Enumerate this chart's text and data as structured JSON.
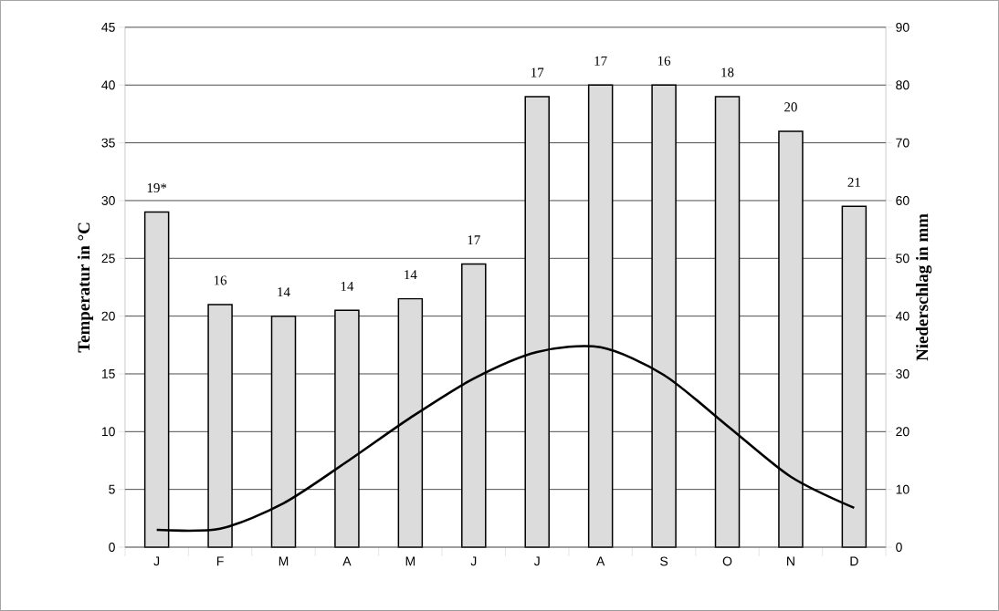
{
  "chart_data": {
    "type": "bar",
    "categories": [
      "J",
      "F",
      "M",
      "A",
      "M",
      "J",
      "J",
      "A",
      "S",
      "O",
      "N",
      "D"
    ],
    "series": [
      {
        "axis": "y2",
        "color": "#dcdcdc",
        "values": [
          58,
          42,
          40,
          41,
          43,
          49,
          78,
          80,
          80,
          78,
          72,
          59
        ]
      },
      {
        "type": "line",
        "color": "#000000",
        "values": [
          1.5,
          1.6,
          3.8,
          7.4,
          11.2,
          14.6,
          16.9,
          17.3,
          14.9,
          10.5,
          6.1,
          3.4
        ]
      }
    ],
    "annotations": [
      "19*",
      "16",
      "14",
      "14",
      "14",
      "17",
      "17",
      "17",
      "16",
      "18",
      "20",
      "21"
    ],
    "ylabel": "Temperatur in °C",
    "y2label": "Niederschlag in mm",
    "ylim": [
      0,
      45
    ],
    "yticks": [
      0,
      5,
      10,
      15,
      20,
      25,
      30,
      35,
      40,
      45
    ],
    "y2lim": [
      0,
      90
    ],
    "y2ticks": [
      0,
      10,
      20,
      30,
      40,
      50,
      60,
      70,
      80,
      90
    ],
    "grid": "y",
    "marker": "none",
    "line_style": "solid"
  }
}
